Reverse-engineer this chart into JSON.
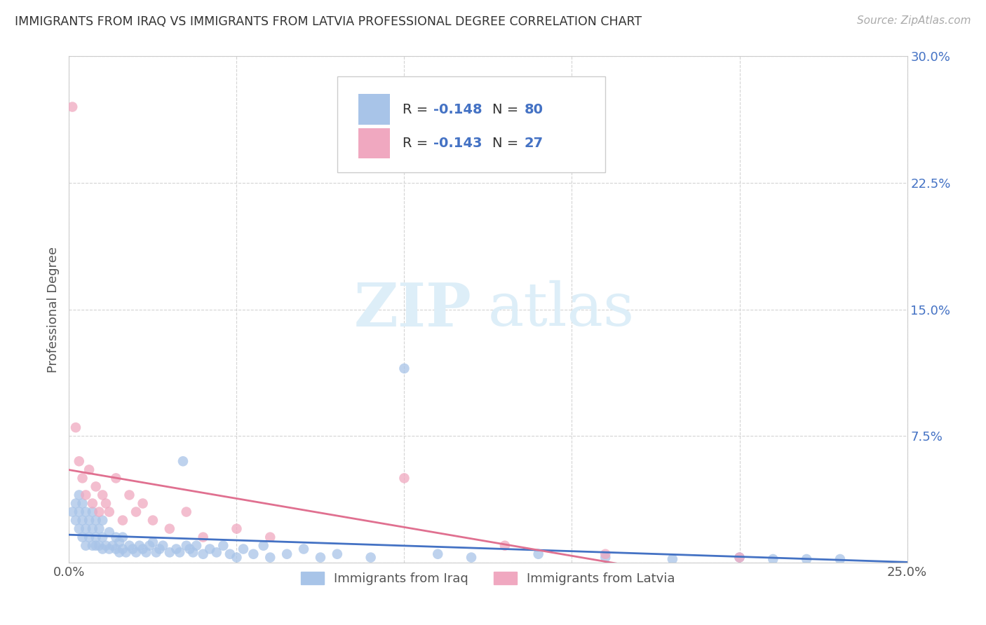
{
  "title": "IMMIGRANTS FROM IRAQ VS IMMIGRANTS FROM LATVIA PROFESSIONAL DEGREE CORRELATION CHART",
  "source": "Source: ZipAtlas.com",
  "ylabel": "Professional Degree",
  "xlim": [
    0.0,
    0.25
  ],
  "ylim": [
    0.0,
    0.3
  ],
  "x_ticks": [
    0.0,
    0.05,
    0.1,
    0.15,
    0.2,
    0.25
  ],
  "x_tick_labels": [
    "0.0%",
    "",
    "",
    "",
    "",
    "25.0%"
  ],
  "y_ticks": [
    0.0,
    0.075,
    0.15,
    0.225,
    0.3
  ],
  "y_tick_labels": [
    "",
    "7.5%",
    "15.0%",
    "22.5%",
    "30.0%"
  ],
  "legend_iraq": "Immigrants from Iraq",
  "legend_latvia": "Immigrants from Latvia",
  "r_iraq": -0.148,
  "n_iraq": 80,
  "r_latvia": -0.143,
  "n_latvia": 27,
  "iraq_color": "#a8c4e8",
  "latvia_color": "#f0a8c0",
  "iraq_line_color": "#4472c4",
  "latvia_line_color": "#e07090",
  "watermark_zip": "ZIP",
  "watermark_atlas": "atlas",
  "background_color": "#ffffff",
  "grid_color": "#d0d0d0",
  "tick_color": "#4472c4",
  "iraq_x": [
    0.001,
    0.002,
    0.002,
    0.003,
    0.003,
    0.003,
    0.004,
    0.004,
    0.004,
    0.005,
    0.005,
    0.005,
    0.006,
    0.006,
    0.007,
    0.007,
    0.007,
    0.008,
    0.008,
    0.008,
    0.009,
    0.009,
    0.01,
    0.01,
    0.01,
    0.011,
    0.012,
    0.012,
    0.013,
    0.014,
    0.014,
    0.015,
    0.015,
    0.016,
    0.016,
    0.017,
    0.018,
    0.019,
    0.02,
    0.021,
    0.022,
    0.023,
    0.024,
    0.025,
    0.026,
    0.027,
    0.028,
    0.03,
    0.032,
    0.033,
    0.034,
    0.035,
    0.036,
    0.037,
    0.038,
    0.04,
    0.042,
    0.044,
    0.046,
    0.048,
    0.05,
    0.052,
    0.055,
    0.058,
    0.06,
    0.065,
    0.07,
    0.075,
    0.08,
    0.09,
    0.1,
    0.11,
    0.12,
    0.14,
    0.16,
    0.18,
    0.2,
    0.21,
    0.22,
    0.23
  ],
  "iraq_y": [
    0.03,
    0.025,
    0.035,
    0.02,
    0.03,
    0.04,
    0.015,
    0.025,
    0.035,
    0.01,
    0.02,
    0.03,
    0.015,
    0.025,
    0.01,
    0.02,
    0.03,
    0.01,
    0.015,
    0.025,
    0.01,
    0.02,
    0.008,
    0.015,
    0.025,
    0.01,
    0.008,
    0.018,
    0.01,
    0.008,
    0.015,
    0.006,
    0.012,
    0.008,
    0.015,
    0.006,
    0.01,
    0.008,
    0.006,
    0.01,
    0.008,
    0.006,
    0.01,
    0.012,
    0.006,
    0.008,
    0.01,
    0.006,
    0.008,
    0.006,
    0.06,
    0.01,
    0.008,
    0.006,
    0.01,
    0.005,
    0.008,
    0.006,
    0.01,
    0.005,
    0.003,
    0.008,
    0.005,
    0.01,
    0.003,
    0.005,
    0.008,
    0.003,
    0.005,
    0.003,
    0.115,
    0.005,
    0.003,
    0.005,
    0.003,
    0.002,
    0.003,
    0.002,
    0.002,
    0.002
  ],
  "latvia_x": [
    0.001,
    0.002,
    0.003,
    0.004,
    0.005,
    0.006,
    0.007,
    0.008,
    0.009,
    0.01,
    0.011,
    0.012,
    0.014,
    0.016,
    0.018,
    0.02,
    0.022,
    0.025,
    0.03,
    0.035,
    0.04,
    0.05,
    0.06,
    0.1,
    0.13,
    0.16,
    0.2
  ],
  "latvia_y": [
    0.27,
    0.08,
    0.06,
    0.05,
    0.04,
    0.055,
    0.035,
    0.045,
    0.03,
    0.04,
    0.035,
    0.03,
    0.05,
    0.025,
    0.04,
    0.03,
    0.035,
    0.025,
    0.02,
    0.03,
    0.015,
    0.02,
    0.015,
    0.05,
    0.01,
    0.005,
    0.003
  ]
}
